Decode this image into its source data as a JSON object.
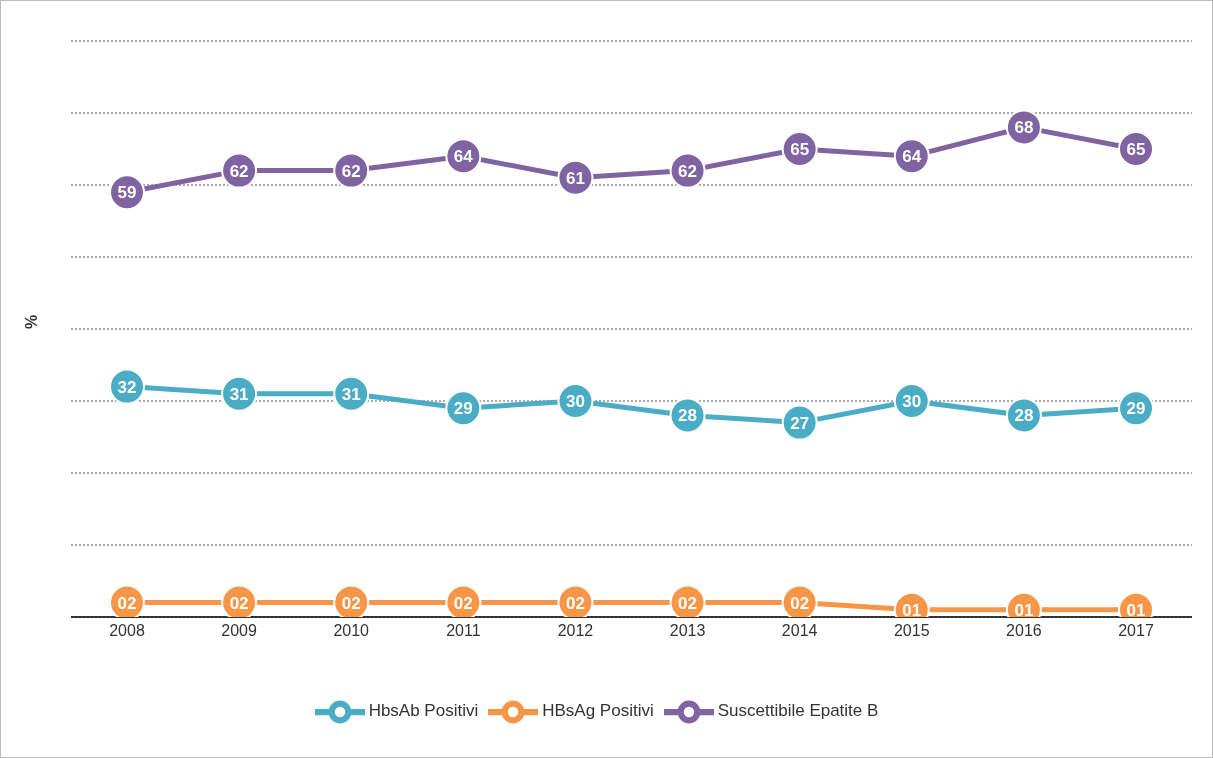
{
  "chart_data": {
    "type": "line",
    "ylabel": "%",
    "categories": [
      "2008",
      "2009",
      "2010",
      "2011",
      "2012",
      "2013",
      "2014",
      "2015",
      "2016",
      "2017"
    ],
    "series": [
      {
        "name": "HbsAb Positivi",
        "color": "#4bacc6",
        "values": [
          32,
          31,
          31,
          29,
          30,
          28,
          27,
          30,
          28,
          29
        ],
        "value_labels": [
          "32",
          "31",
          "31",
          "29",
          "30",
          "28",
          "27",
          "30",
          "28",
          "29"
        ]
      },
      {
        "name": "HBsAg Positivi",
        "color": "#f79646",
        "values": [
          2,
          2,
          2,
          2,
          2,
          2,
          2,
          1,
          1,
          1
        ],
        "value_labels": [
          "02",
          "02",
          "02",
          "02",
          "02",
          "02",
          "02",
          "01",
          "01",
          "01"
        ]
      },
      {
        "name": "Suscettibile Epatite B",
        "color": "#8064a2",
        "values": [
          59,
          62,
          62,
          64,
          61,
          62,
          65,
          64,
          68,
          65
        ],
        "value_labels": [
          "59",
          "62",
          "62",
          "64",
          "61",
          "62",
          "65",
          "64",
          "68",
          "65"
        ]
      }
    ],
    "ylim": [
      0,
      80
    ],
    "grid": "y",
    "legend": "bottom",
    "marker": "circle",
    "line_style": "solid",
    "tick_labels": "x"
  }
}
